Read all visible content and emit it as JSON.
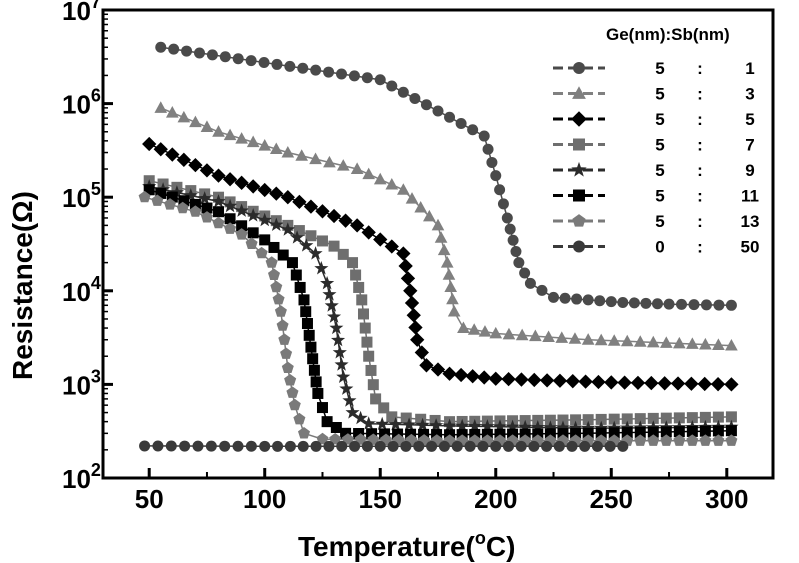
{
  "chart_data": {
    "type": "line",
    "title": "",
    "xlabel_main": "Temperature(",
    "xlabel_sup": "o",
    "xlabel_tail": "C)",
    "ylabel": "Resistance(Ω)",
    "xlim": [
      30,
      320
    ],
    "ylim": [
      100,
      10000000
    ],
    "y_scale": "log",
    "x_ticks": [
      "50",
      "100",
      "150",
      "200",
      "250",
      "300"
    ],
    "y_ticks": [
      {
        "base": "10",
        "exp": "2",
        "value": 100
      },
      {
        "base": "10",
        "exp": "3",
        "value": 1000
      },
      {
        "base": "10",
        "exp": "4",
        "value": 10000
      },
      {
        "base": "10",
        "exp": "5",
        "value": 100000
      },
      {
        "base": "10",
        "exp": "6",
        "value": 1000000
      },
      {
        "base": "10",
        "exp": "7",
        "value": 10000000
      }
    ],
    "legend_header": "Ge(nm):Sb(nm)",
    "legend_position": "top-right",
    "series": [
      {
        "ge": "5",
        "sep": ":",
        "sb": "1",
        "marker": "circle",
        "color": "#4a4a4a",
        "x": [
          55,
          150,
          195,
          200,
          205,
          210,
          215,
          225,
          240,
          255,
          275,
          302
        ],
        "y": [
          4000000,
          1800000,
          450000,
          170000,
          60000,
          20000,
          12000,
          8500,
          8000,
          7500,
          7200,
          7000
        ]
      },
      {
        "ge": "5",
        "sep": ":",
        "sb": "3",
        "marker": "triangle",
        "color": "#808080",
        "x": [
          55,
          80,
          110,
          140,
          160,
          175,
          179,
          182,
          186,
          200,
          240,
          302
        ],
        "y": [
          900000,
          500000,
          300000,
          200000,
          120000,
          50000,
          20000,
          6000,
          4000,
          3500,
          3000,
          2600
        ]
      },
      {
        "ge": "5",
        "sep": ":",
        "sb": "5",
        "marker": "diamond",
        "color": "#000000",
        "x": [
          50,
          80,
          110,
          140,
          160,
          163,
          166,
          170,
          180,
          200,
          250,
          302
        ],
        "y": [
          370000,
          170000,
          100000,
          50000,
          25000,
          10000,
          3000,
          1600,
          1300,
          1150,
          1050,
          1000
        ]
      },
      {
        "ge": "5",
        "sep": ":",
        "sb": "7",
        "marker": "square",
        "color": "#6e6e6e",
        "x": [
          50,
          80,
          110,
          130,
          138,
          142,
          145,
          148,
          155,
          180,
          240,
          302
        ],
        "y": [
          150000,
          100000,
          50000,
          30000,
          20000,
          8000,
          2000,
          700,
          450,
          400,
          420,
          450
        ]
      },
      {
        "ge": "5",
        "sep": ":",
        "sb": "9",
        "marker": "star",
        "color": "#2b2b2b",
        "x": [
          50,
          80,
          110,
          122,
          127,
          131,
          134,
          138,
          145,
          180,
          240,
          302
        ],
        "y": [
          130000,
          90000,
          45000,
          25000,
          12000,
          4000,
          1200,
          500,
          380,
          360,
          340,
          350
        ]
      },
      {
        "ge": "5",
        "sep": ":",
        "sb": "11",
        "marker": "square",
        "color": "#000000",
        "x": [
          50,
          80,
          100,
          112,
          117,
          120,
          123,
          127,
          135,
          180,
          240,
          302
        ],
        "y": [
          120000,
          70000,
          35000,
          20000,
          8000,
          2500,
          800,
          400,
          300,
          290,
          300,
          320
        ]
      },
      {
        "ge": "5",
        "sep": ":",
        "sb": "13",
        "marker": "pentagon",
        "color": "#7a7a7a",
        "x": [
          48,
          70,
          90,
          103,
          107,
          110,
          113,
          117,
          125,
          180,
          240,
          302
        ],
        "y": [
          100000,
          70000,
          40000,
          20000,
          6000,
          1500,
          600,
          300,
          260,
          250,
          250,
          250
        ]
      },
      {
        "ge": "0",
        "sep": ":",
        "sb": "50",
        "marker": "circle",
        "color": "#3a3a3a",
        "x": [
          48,
          100,
          150,
          200,
          255
        ],
        "y": [
          220,
          218,
          218,
          218,
          218
        ]
      }
    ]
  }
}
